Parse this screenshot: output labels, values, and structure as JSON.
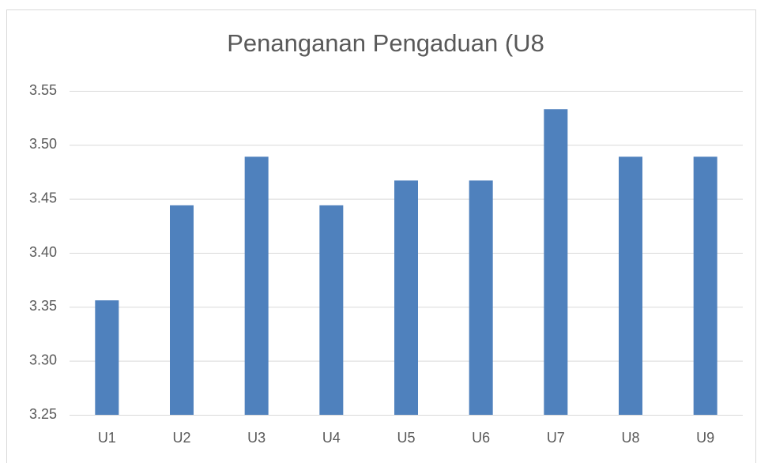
{
  "chart_data": {
    "type": "bar",
    "title": "Penanganan Pengaduan (U8",
    "categories": [
      "U1",
      "U2",
      "U3",
      "U4",
      "U5",
      "U6",
      "U7",
      "U8",
      "U9"
    ],
    "values": [
      3.356,
      3.444,
      3.489,
      3.444,
      3.467,
      3.467,
      3.533,
      3.489,
      3.489
    ],
    "color": "#4f81bd",
    "ylim": [
      3.25,
      3.55
    ],
    "yticks": [
      3.25,
      {
        "value": 3.3,
        "label": "3.30"
      },
      3.35,
      {
        "value": 3.4,
        "label": "3.40"
      },
      3.45,
      {
        "value": 3.5,
        "label": "3.50"
      },
      3.55
    ],
    "grid": true
  }
}
